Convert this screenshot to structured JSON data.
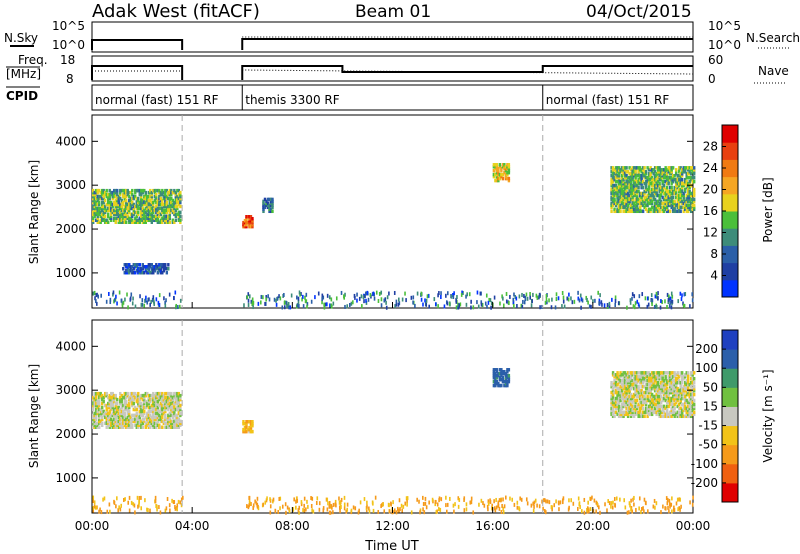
{
  "header": {
    "station": "Adak West (fitACF)",
    "beam": "Beam 01",
    "date": "04/Oct/2015"
  },
  "summary_panels": {
    "nsky_label": "N.Sky",
    "nsearch_label": "N.Search",
    "nsky_ticks": [
      "10^5",
      "10^0"
    ],
    "right_ticks_top": [
      "10^5",
      "10^0"
    ],
    "freq_label_line1": "Freq.",
    "freq_label_line2": "[MHz]",
    "freq_ticks": [
      "18",
      "8"
    ],
    "nave_label": "Nave",
    "nave_ticks": [
      "60",
      "0"
    ],
    "cpid_label": "CPID"
  },
  "cpid_segments": [
    {
      "label": "normal (fast) 151 RF",
      "start_h": 0,
      "end_h": 3.6
    },
    {
      "label": "themis 3300 RF",
      "start_h": 6.0,
      "end_h": 18.0
    },
    {
      "label": "normal (fast) 151 RF",
      "start_h": 18.0,
      "end_h": 24.0
    }
  ],
  "colors": {
    "power": [
      "#0033ff",
      "#1f3fa3",
      "#2a5fa8",
      "#3d8c7a",
      "#4bbf3a",
      "#e8d21e",
      "#f5a623",
      "#f07a12",
      "#e84010",
      "#e00000"
    ],
    "velocity": [
      "#e00000",
      "#f06010",
      "#f59a1a",
      "#f2c318",
      "#c8c8c0",
      "#70c040",
      "#3f9a6a",
      "#2b5faa",
      "#1f40c0"
    ]
  },
  "chart_data": [
    {
      "type": "heatmap",
      "panel": "power",
      "ylabel": "Slant Range [km]",
      "yticks": [
        "1000",
        "2000",
        "3000",
        "4000"
      ],
      "ylim": [
        200,
        4600
      ],
      "xlim_hours": [
        0,
        24
      ],
      "colorbar_label": "Power [dB]",
      "colorbar_ticks": [
        "4",
        "8",
        "12",
        "16",
        "20",
        "24",
        "28"
      ],
      "colorbar_range": [
        0,
        32
      ],
      "regions": [
        {
          "t0": 0,
          "t1": 3.5,
          "r0": 2150,
          "r1": 2900,
          "v": 14
        },
        {
          "t0": 1.2,
          "t1": 3.0,
          "r0": 1000,
          "r1": 1200,
          "v": 6
        },
        {
          "t0": 6.0,
          "t1": 6.4,
          "r0": 2050,
          "r1": 2300,
          "v": 26
        },
        {
          "t0": 6.8,
          "t1": 7.2,
          "r0": 2400,
          "r1": 2700,
          "v": 10
        },
        {
          "t0": 16.0,
          "t1": 16.6,
          "r0": 3100,
          "r1": 3500,
          "v": 18
        },
        {
          "t0": 20.7,
          "t1": 24,
          "r0": 2400,
          "r1": 3400,
          "v": 14
        }
      ]
    },
    {
      "type": "heatmap",
      "panel": "velocity",
      "ylabel": "Slant Range [km]",
      "yticks": [
        "1000",
        "2000",
        "3000",
        "4000"
      ],
      "ylim": [
        200,
        4600
      ],
      "xlim_hours": [
        0,
        24
      ],
      "xticks": [
        "00:00",
        "04:00",
        "08:00",
        "12:00",
        "16:00",
        "20:00",
        "00:00"
      ],
      "xlabel": "Time UT",
      "colorbar_label": "Velocity [m s⁻¹]",
      "colorbar_ticks": [
        "-200",
        "-100",
        "-50",
        "-15",
        "15",
        "50",
        "100",
        "200"
      ],
      "regions": [
        {
          "t0": 0,
          "t1": 3.5,
          "r0": 2150,
          "r1": 2950,
          "v": 0
        },
        {
          "t0": 6.0,
          "t1": 6.4,
          "r0": 2050,
          "r1": 2300,
          "v": -40
        },
        {
          "t0": 16.0,
          "t1": 16.6,
          "r0": 3100,
          "r1": 3500,
          "v": 120
        },
        {
          "t0": 20.7,
          "t1": 24,
          "r0": 2400,
          "r1": 3400,
          "v": 0
        }
      ]
    }
  ]
}
